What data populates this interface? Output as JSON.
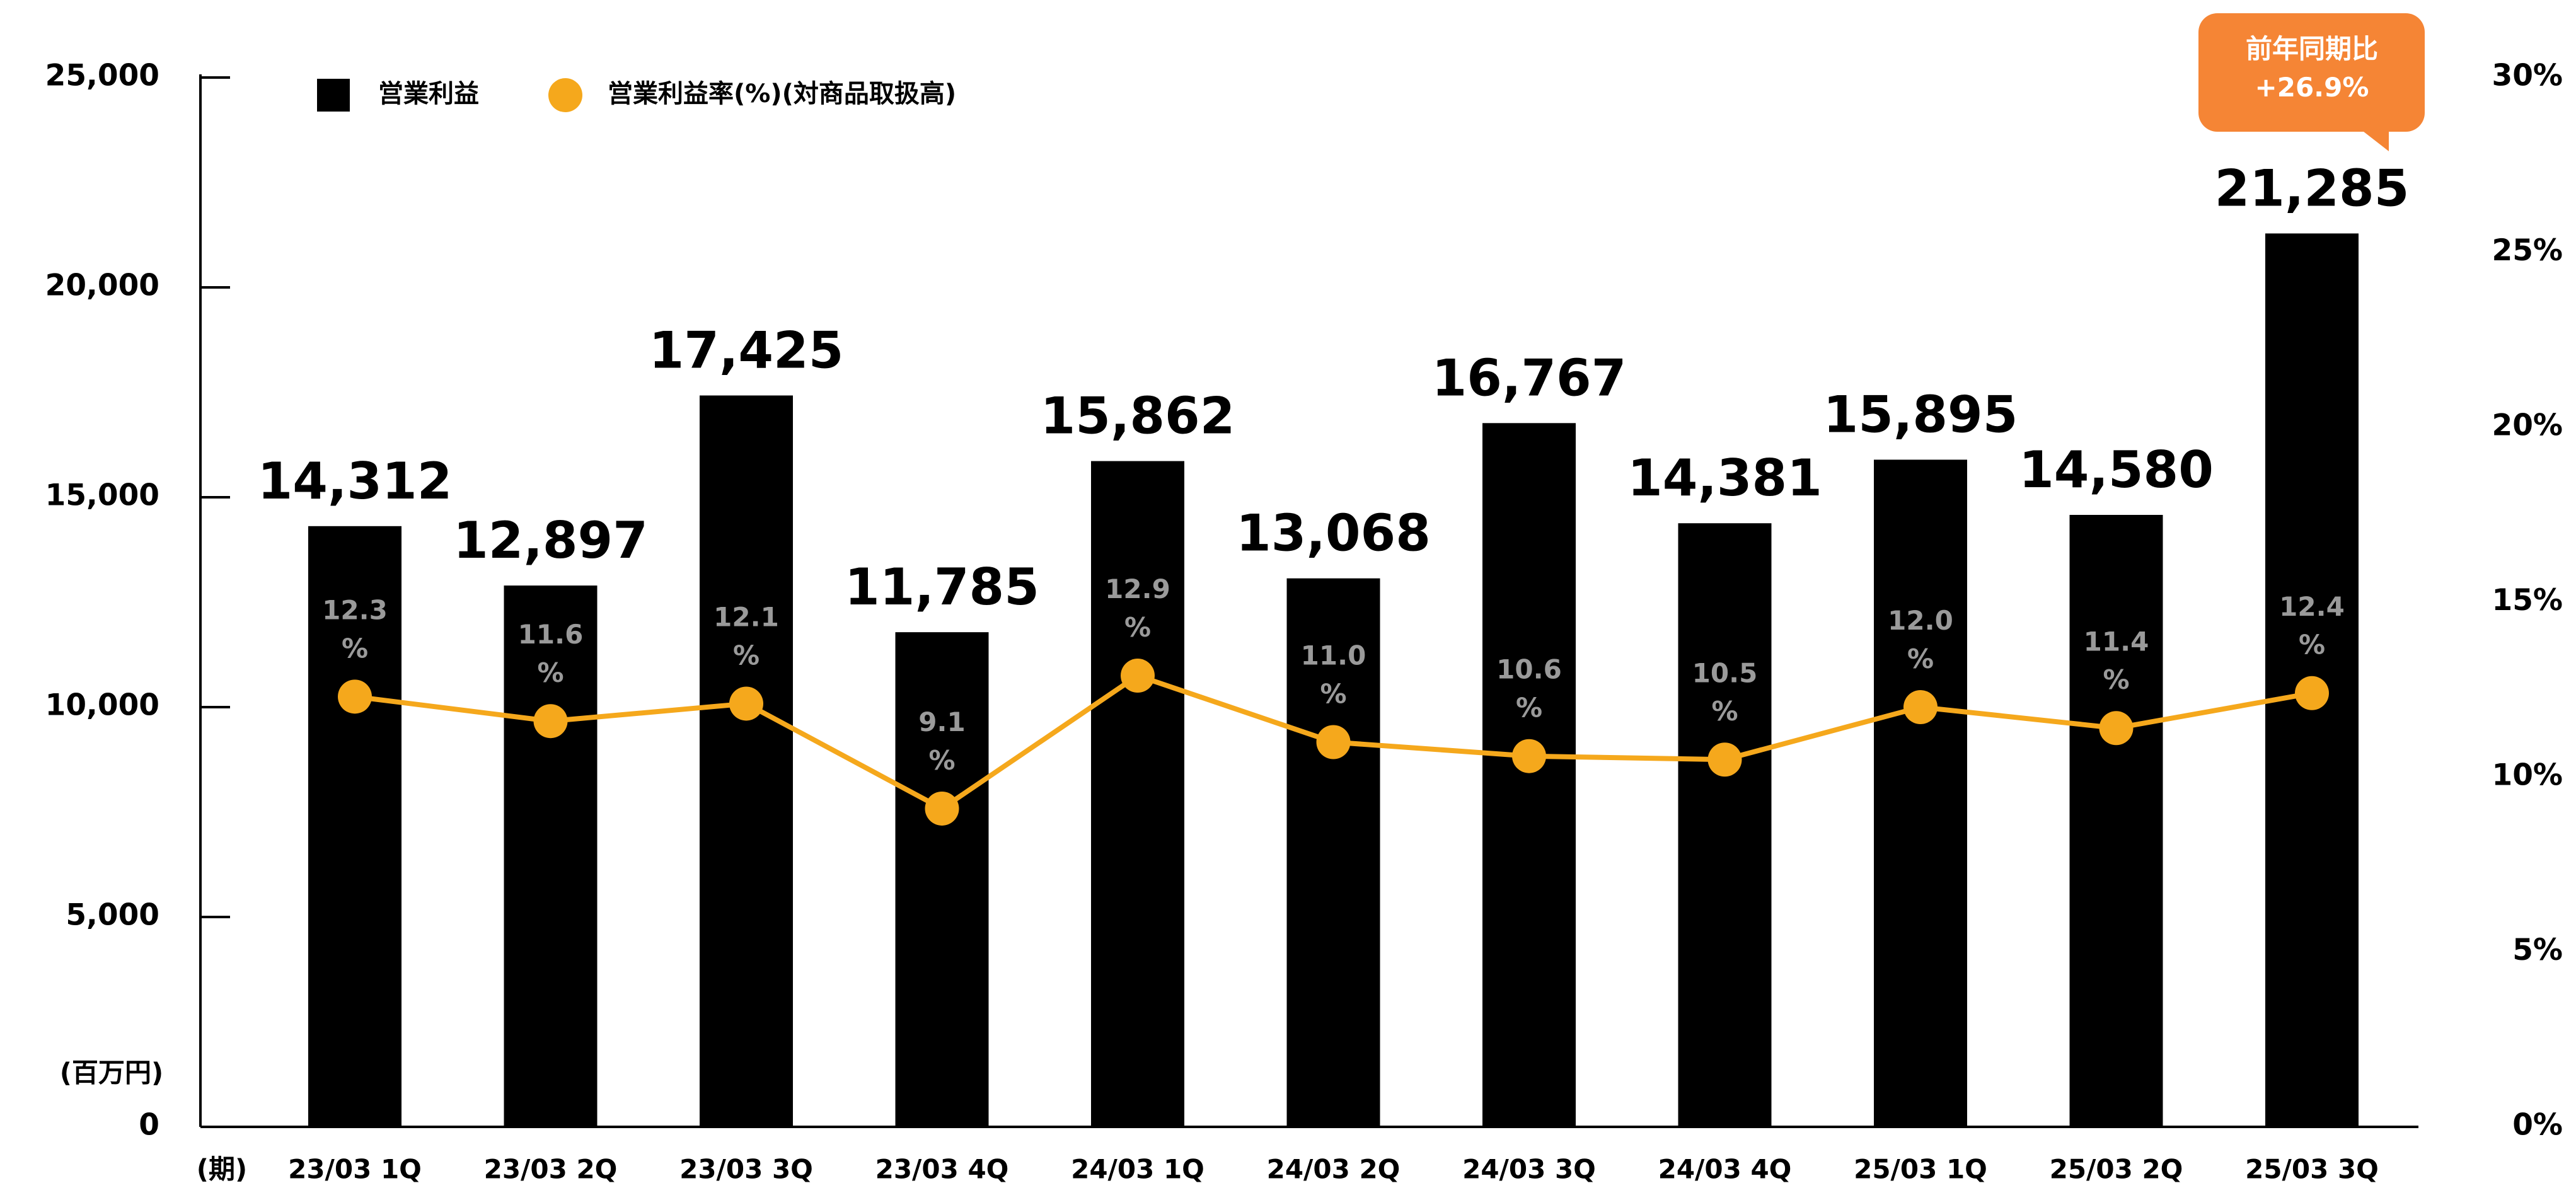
{
  "chart_data": {
    "type": "bar_line",
    "categories": [
      "23/03 1Q",
      "23/03 2Q",
      "23/03 3Q",
      "23/03 4Q",
      "24/03 1Q",
      "24/03 2Q",
      "24/03 3Q",
      "24/03 4Q",
      "25/03 1Q",
      "25/03 2Q",
      "25/03 3Q"
    ],
    "series": [
      {
        "name": "営業利益",
        "type": "bar",
        "color": "#000000",
        "values": [
          14312,
          12897,
          17425,
          11785,
          15862,
          13068,
          16767,
          14381,
          15895,
          14580,
          21285
        ],
        "value_labels": [
          "14,312",
          "12,897",
          "17,425",
          "11,785",
          "15,862",
          "13,068",
          "16,767",
          "14,381",
          "15,895",
          "14,580",
          "21,285"
        ]
      },
      {
        "name": "営業利益率(%)(対商品取扱高)",
        "type": "line",
        "axis": "y2",
        "color": "#f5a81c",
        "values": [
          12.3,
          11.6,
          12.1,
          9.1,
          12.9,
          11.0,
          10.6,
          10.5,
          12.0,
          11.4,
          12.4
        ],
        "value_labels": [
          "12.3\n%",
          "11.6\n%",
          "12.1\n%",
          "9.1\n%",
          "12.9\n%",
          "11.0\n%",
          "10.6\n%",
          "10.5\n%",
          "12.0\n%",
          "11.4\n%",
          "12.4\n%"
        ]
      }
    ],
    "ylabel": "(百万円)",
    "xlabel": "(期)",
    "ylim": [
      0,
      25000
    ],
    "yticks": [
      0,
      {
        "value": 5000,
        "label": "5,000"
      },
      {
        "value": 10000,
        "label": "10,000"
      },
      {
        "value": 15000,
        "label": "15,000"
      },
      {
        "value": 20000,
        "label": "20,000"
      },
      {
        "value": 25000,
        "label": "25,000"
      }
    ],
    "y2lim": [
      0,
      30
    ],
    "y2ticks": [
      {
        "value": 0,
        "label": "0%"
      },
      {
        "value": 5,
        "label": "5%"
      },
      {
        "value": 10,
        "label": "10%"
      },
      {
        "value": 15,
        "label": "15%"
      },
      {
        "value": 20,
        "label": "20%"
      },
      {
        "value": 25,
        "label": "25%"
      },
      {
        "value": 30,
        "label": "30%"
      }
    ],
    "annotation": {
      "text": "前年同期比\n+26.9%",
      "color": "#f58535"
    }
  }
}
